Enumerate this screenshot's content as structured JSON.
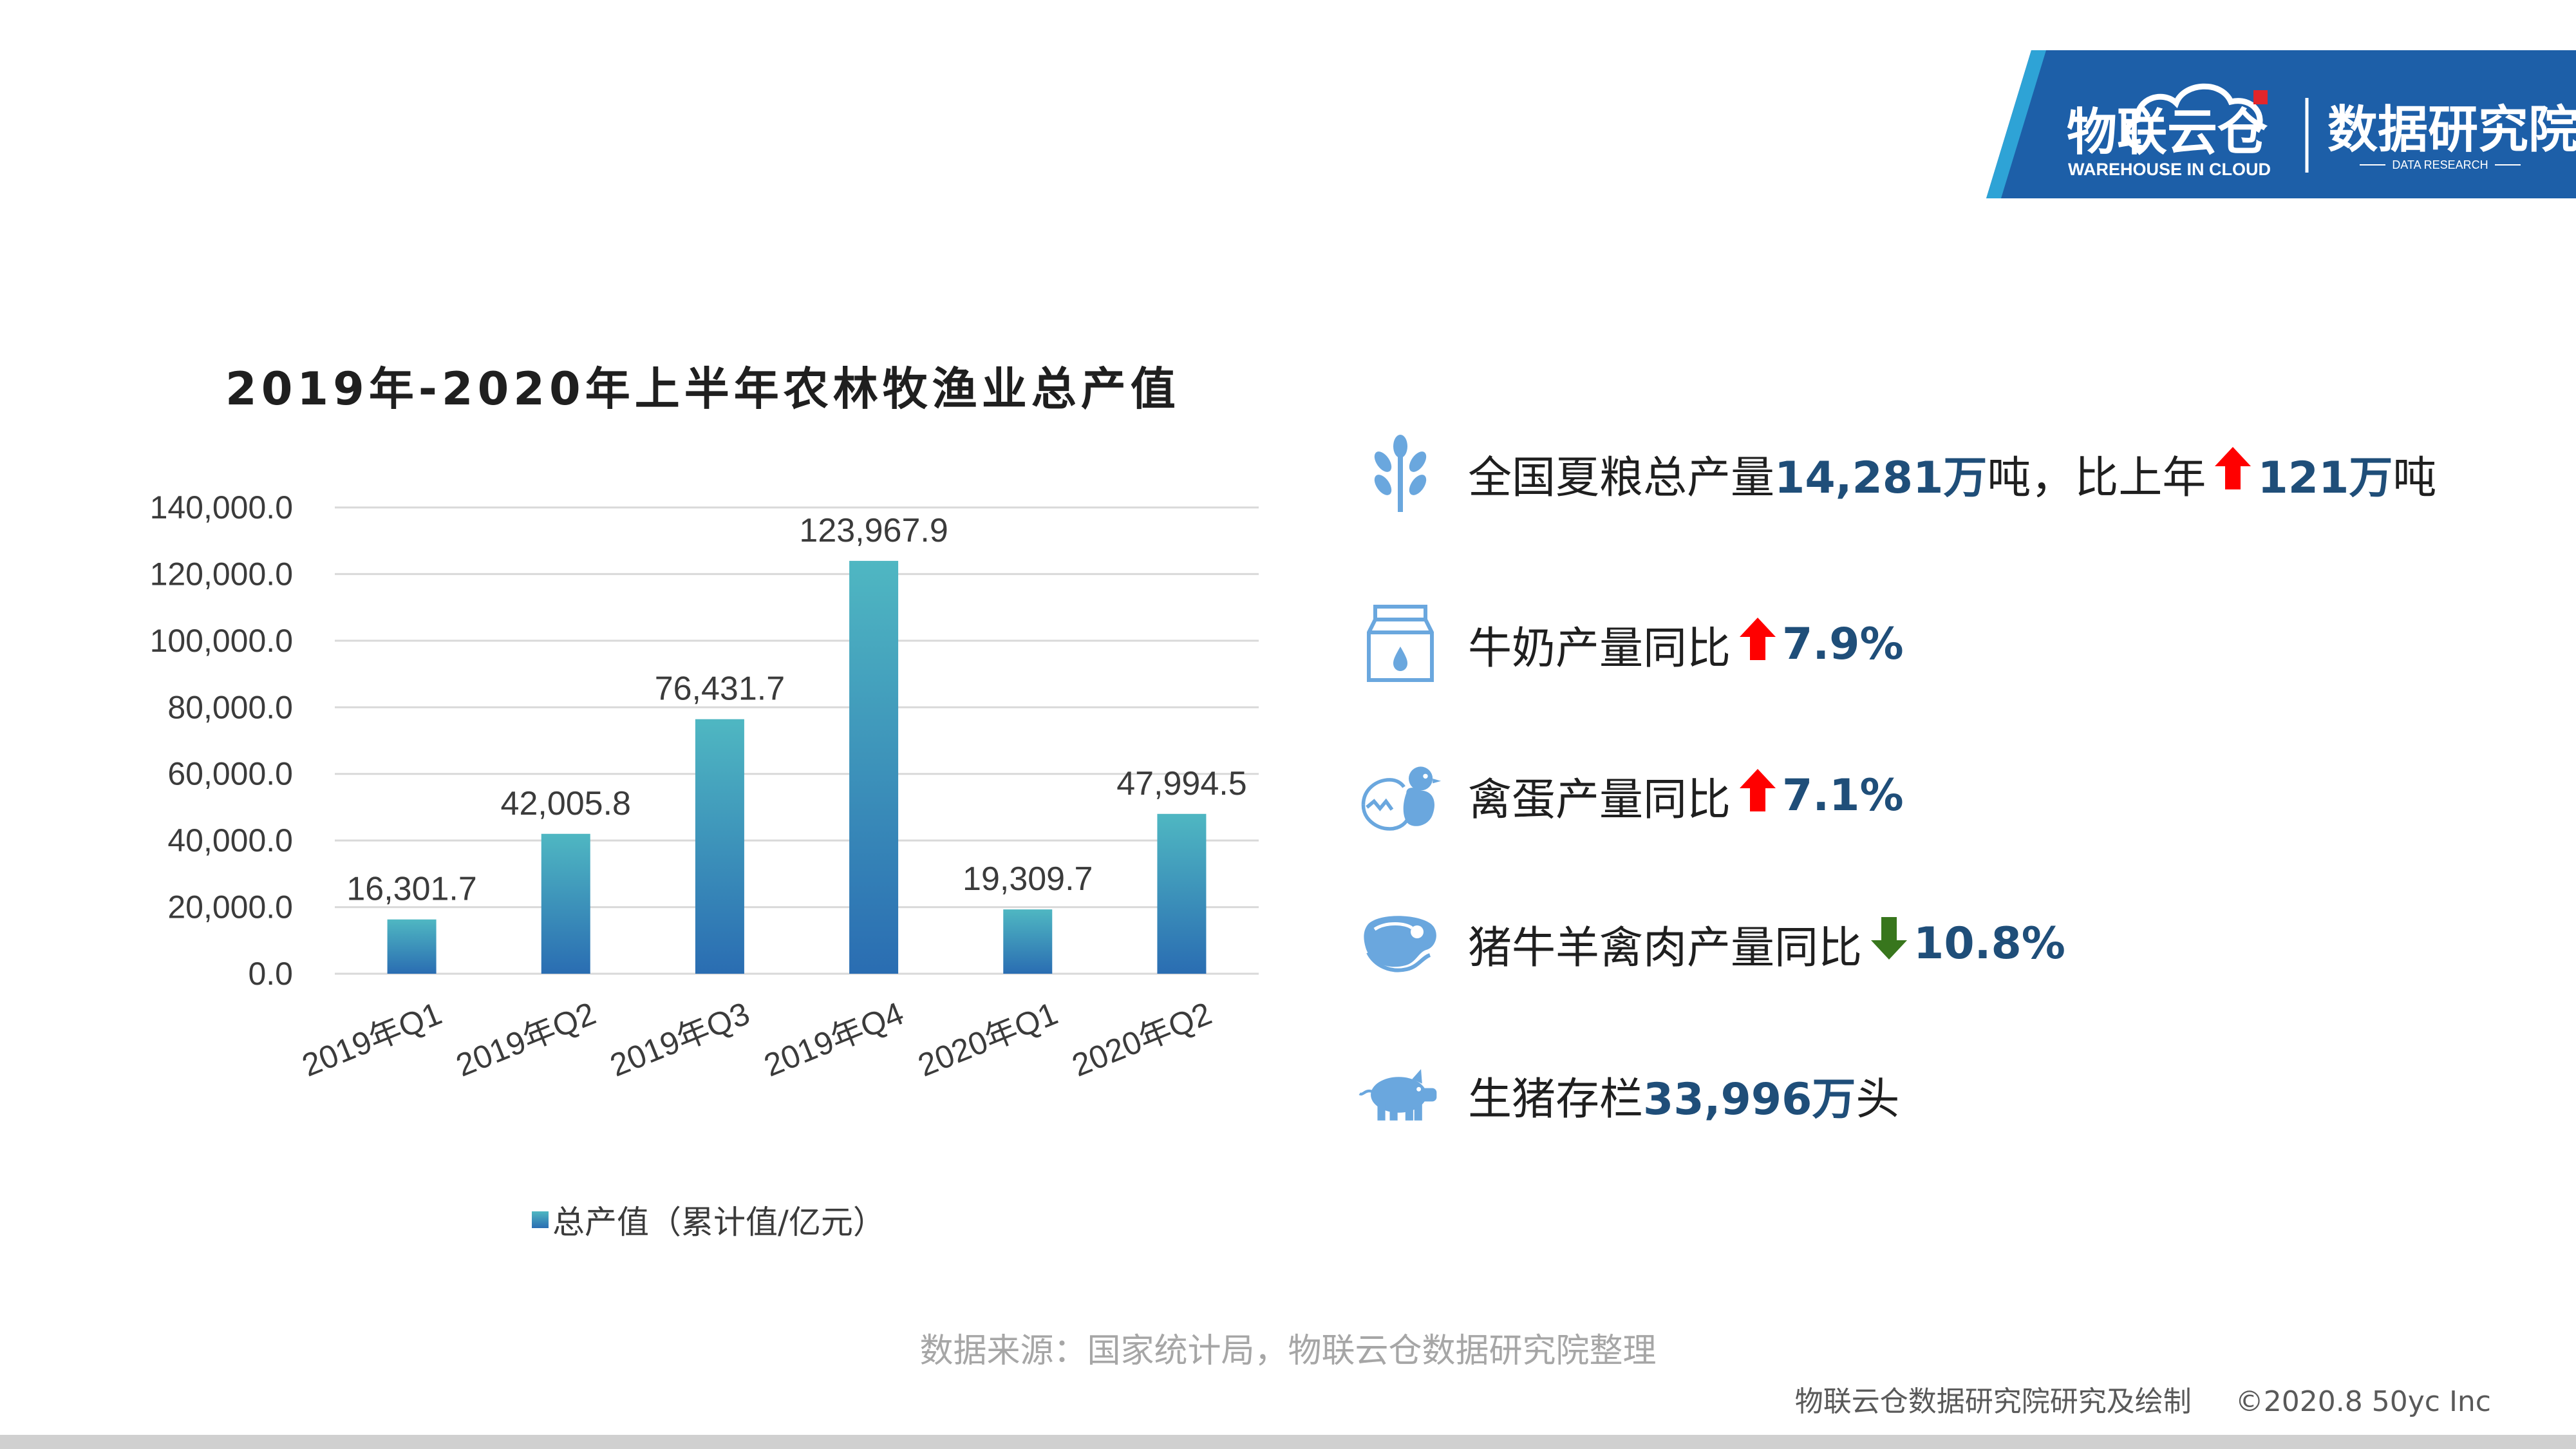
{
  "logo": {
    "brand_cn": "物联云仓",
    "brand_en": "WAREHOUSE IN CLOUD",
    "institute_cn": "数据研究院",
    "institute_en": "DATA RESEARCH",
    "colors": {
      "banner": "#1d5fa8",
      "accent": "#2ea3d6",
      "red": "#e1262b"
    }
  },
  "chart_data": {
    "type": "bar",
    "title": "2019年-2020年上半年农林牧渔业总产值",
    "categories": [
      "2019年Q1",
      "2019年Q2",
      "2019年Q3",
      "2019年Q4",
      "2020年Q1",
      "2020年Q2"
    ],
    "series": [
      {
        "name": "总产值（累计值/亿元）",
        "values": [
          16301.7,
          42005.8,
          76431.7,
          123967.9,
          19309.7,
          47994.5
        ]
      }
    ],
    "value_labels": [
      "16,301.7",
      "42,005.8",
      "76,431.7",
      "123,967.9",
      "19,309.7",
      "47,994.5"
    ],
    "ylim": [
      0,
      140000
    ],
    "yticks": [
      "0.0",
      "20,000.0",
      "40,000.0",
      "60,000.0",
      "80,000.0",
      "100,000.0",
      "120,000.0",
      "140,000.0"
    ],
    "grid": true,
    "legend": "bottom",
    "colors": {
      "bar_top": "#4fb7c2",
      "bar_bottom": "#2a6db2",
      "grid": "#d9d9d9"
    }
  },
  "facts": [
    {
      "icon": "wheat-icon",
      "text_a": "全国夏粮总产量",
      "value_a": "14,281万",
      "text_b": "吨，比上年",
      "trend": "up",
      "value_b": "121万",
      "text_c": "吨"
    },
    {
      "icon": "milk-carton-icon",
      "text_a": "牛奶产量同比",
      "trend": "up",
      "value_b": "7.9%"
    },
    {
      "icon": "chick-egg-icon",
      "text_a": "禽蛋产量同比",
      "trend": "up",
      "value_b": "7.1%"
    },
    {
      "icon": "meat-icon",
      "text_a": "猪牛羊禽肉产量同比",
      "trend": "down",
      "value_b": "10.8%"
    },
    {
      "icon": "pig-icon",
      "text_a": "生猪存栏",
      "value_a": "33,996万",
      "text_b": "头"
    }
  ],
  "trend_colors": {
    "up": "#ff0000",
    "down": "#38761d"
  },
  "footer": {
    "source": "数据来源：国家统计局，物联云仓数据研究院整理",
    "credit": "物联云仓数据研究院研究及绘制",
    "copyright": "©2020.8 50yc Inc"
  }
}
